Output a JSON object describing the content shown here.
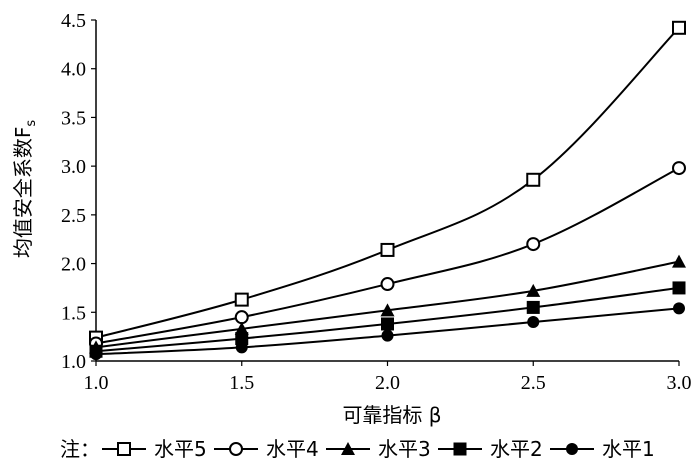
{
  "chart_data": {
    "type": "line",
    "x": [
      1.0,
      1.5,
      2.0,
      2.5,
      3.0
    ],
    "x_ticks": [
      "1.0",
      "1.5",
      "2.0",
      "2.5",
      "3.0"
    ],
    "y_ticks": [
      "1.0",
      "1.5",
      "2.0",
      "2.5",
      "3.0",
      "3.5",
      "4.0",
      "4.5"
    ],
    "xlim": [
      1.0,
      3.0
    ],
    "ylim": [
      1.0,
      4.5
    ],
    "xlabel": "可靠指标 β",
    "ylabel": "均值安全系数F",
    "ylabel_sub": "s",
    "grid": false,
    "legend_position": "bottom",
    "legend_prefix": "注：",
    "series": [
      {
        "name": "水平5",
        "marker": "square-open",
        "values": [
          1.24,
          1.63,
          2.14,
          2.86,
          4.42
        ]
      },
      {
        "name": "水平4",
        "marker": "circle-open",
        "values": [
          1.18,
          1.45,
          1.79,
          2.2,
          2.98
        ]
      },
      {
        "name": "水平3",
        "marker": "triangle-filled",
        "values": [
          1.14,
          1.33,
          1.52,
          1.72,
          2.02
        ]
      },
      {
        "name": "水平2",
        "marker": "square-filled",
        "values": [
          1.1,
          1.23,
          1.38,
          1.55,
          1.75
        ]
      },
      {
        "name": "水平1",
        "marker": "circle-filled",
        "values": [
          1.07,
          1.14,
          1.26,
          1.4,
          1.54
        ]
      }
    ],
    "color": "#000000"
  }
}
